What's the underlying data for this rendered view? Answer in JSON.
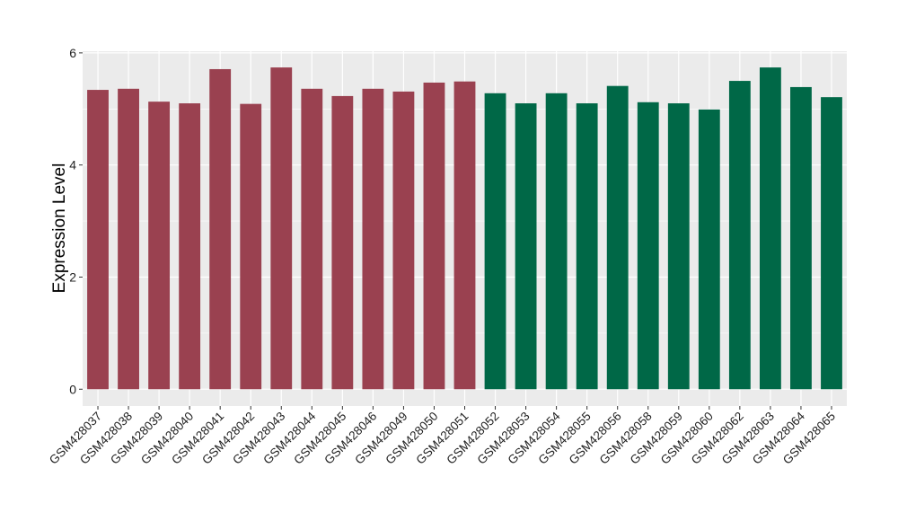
{
  "chart_data": {
    "type": "bar",
    "title": "",
    "xlabel": "",
    "ylabel": "Expression Level",
    "ylim": [
      -0.3,
      6.03
    ],
    "yticks": [
      0,
      2,
      4,
      6
    ],
    "grid": true,
    "colors": {
      "group1": "#9A4150",
      "group2": "#006847",
      "panel": "#EBEBEB",
      "grid": "#FFFFFF"
    },
    "categories": [
      "GSM428037",
      "GSM428038",
      "GSM428039",
      "GSM428040",
      "GSM428041",
      "GSM428042",
      "GSM428043",
      "GSM428044",
      "GSM428045",
      "GSM428046",
      "GSM428049",
      "GSM428050",
      "GSM428051",
      "GSM428052",
      "GSM428053",
      "GSM428054",
      "GSM428055",
      "GSM428056",
      "GSM428058",
      "GSM428059",
      "GSM428060",
      "GSM428062",
      "GSM428063",
      "GSM428064",
      "GSM428065"
    ],
    "values": [
      5.34,
      5.36,
      5.13,
      5.1,
      5.71,
      5.09,
      5.74,
      5.36,
      5.23,
      5.36,
      5.31,
      5.47,
      5.49,
      5.28,
      5.1,
      5.28,
      5.1,
      5.41,
      5.12,
      5.1,
      4.99,
      5.5,
      5.74,
      5.39,
      5.21
    ],
    "groups": [
      1,
      1,
      1,
      1,
      1,
      1,
      1,
      1,
      1,
      1,
      1,
      1,
      1,
      2,
      2,
      2,
      2,
      2,
      2,
      2,
      2,
      2,
      2,
      2,
      2
    ]
  }
}
